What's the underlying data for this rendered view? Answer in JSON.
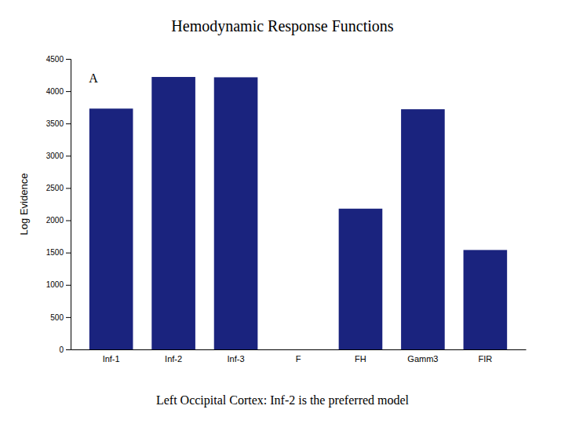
{
  "chart_data": {
    "type": "bar",
    "title": "Hemodynamic Response Functions",
    "subtitle": "Left Occipital Cortex: Inf-2 is the preferred model",
    "ylabel": "Log Evidence",
    "annotation": "A",
    "categories": [
      "Inf-1",
      "Inf-2",
      "Inf-3",
      "F",
      "FH",
      "Gamm3",
      "FIR"
    ],
    "values": [
      3730,
      4220,
      4215,
      0,
      2180,
      3720,
      1540
    ],
    "color": "#1a237e",
    "ylim": [
      0,
      4500
    ],
    "yticks": [
      0,
      500,
      1000,
      1500,
      2000,
      2500,
      3000,
      3500,
      4000,
      4500
    ],
    "grid": false
  }
}
